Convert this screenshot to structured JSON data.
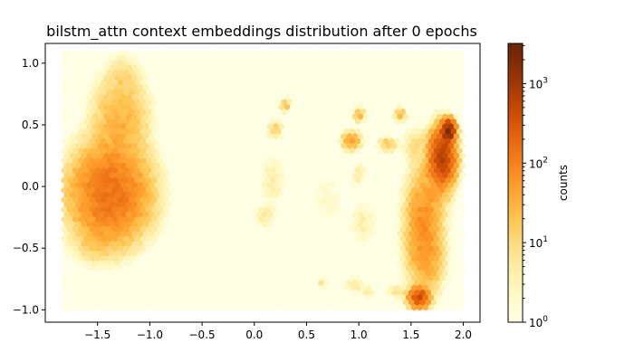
{
  "chart_data": {
    "type": "heatmap",
    "subtype": "hexbin",
    "title": "bilstm_attn context embeddings distribution after 0 epochs",
    "xlabel": "",
    "ylabel": "",
    "xlim": [
      -2.0,
      2.16
    ],
    "ylim": [
      -1.1,
      1.16
    ],
    "x_ticks": [
      -1.5,
      -1.0,
      -0.5,
      0.0,
      0.5,
      1.0,
      1.5,
      2.0
    ],
    "x_tick_labels": [
      "−1.5",
      "−1.0",
      "−0.5",
      "0.0",
      "0.5",
      "1.0",
      "1.5",
      "2.0"
    ],
    "y_ticks": [
      -1.0,
      -0.5,
      0.0,
      0.5,
      1.0
    ],
    "y_tick_labels": [
      "−1.0",
      "−0.5",
      "0.0",
      "0.5",
      "1.0"
    ],
    "hexbin_extent": {
      "x": [
        -1.82,
        2.0
      ],
      "y": [
        -1.0,
        1.08
      ]
    },
    "colormap": "YlOrBr",
    "colorbar": {
      "label": "counts",
      "scale": "log",
      "range": [
        1,
        3200
      ],
      "ticks": [
        1,
        10,
        100,
        1000
      ],
      "tick_labels": [
        "10",
        "10",
        "10",
        "10"
      ],
      "tick_exponents": [
        "0",
        "1",
        "2",
        "3"
      ],
      "colors": [
        "#ffffe5",
        "#fff7bc",
        "#fee391",
        "#fec44f",
        "#fe9929",
        "#ec7014",
        "#cc4c02",
        "#993404",
        "#662506"
      ]
    },
    "clusters": [
      {
        "x": -1.38,
        "y": -0.06,
        "sx": 0.19,
        "sy": 0.2,
        "peak": 150
      },
      {
        "x": -1.28,
        "y": 0.52,
        "sx": 0.14,
        "sy": 0.2,
        "peak": 30
      },
      {
        "x": -1.25,
        "y": 0.88,
        "sx": 0.09,
        "sy": 0.1,
        "peak": 6
      },
      {
        "x": -1.52,
        "y": -0.48,
        "sx": 0.12,
        "sy": 0.08,
        "peak": 8
      },
      {
        "x": 1.62,
        "y": -0.35,
        "sx": 0.09,
        "sy": 0.25,
        "peak": 70
      },
      {
        "x": 1.8,
        "y": 0.24,
        "sx": 0.06,
        "sy": 0.11,
        "peak": 600
      },
      {
        "x": 1.86,
        "y": 0.45,
        "sx": 0.03,
        "sy": 0.04,
        "peak": 1800
      },
      {
        "x": 1.58,
        "y": -0.9,
        "sx": 0.05,
        "sy": 0.04,
        "peak": 350
      },
      {
        "x": 1.75,
        "y": 0.02,
        "sx": 0.08,
        "sy": 0.12,
        "peak": 25
      },
      {
        "x": 1.55,
        "y": 0.33,
        "sx": 0.07,
        "sy": 0.08,
        "peak": 8
      },
      {
        "x": 1.72,
        "y": -0.62,
        "sx": 0.06,
        "sy": 0.1,
        "peak": 15
      },
      {
        "x": 0.93,
        "y": 0.37,
        "sx": 0.05,
        "sy": 0.04,
        "peak": 40
      },
      {
        "x": 1.0,
        "y": 0.58,
        "sx": 0.03,
        "sy": 0.03,
        "peak": 30
      },
      {
        "x": 1.4,
        "y": 0.58,
        "sx": 0.03,
        "sy": 0.03,
        "peak": 25
      },
      {
        "x": 1.28,
        "y": 0.34,
        "sx": 0.05,
        "sy": 0.03,
        "peak": 20
      },
      {
        "x": 0.3,
        "y": 0.66,
        "sx": 0.03,
        "sy": 0.03,
        "peak": 18
      },
      {
        "x": 0.2,
        "y": 0.46,
        "sx": 0.04,
        "sy": 0.04,
        "peak": 12
      },
      {
        "x": 0.18,
        "y": 0.05,
        "sx": 0.08,
        "sy": 0.12,
        "peak": 4
      },
      {
        "x": 0.1,
        "y": -0.25,
        "sx": 0.06,
        "sy": 0.06,
        "peak": 5
      },
      {
        "x": 0.7,
        "y": -0.1,
        "sx": 0.12,
        "sy": 0.15,
        "peak": 2
      },
      {
        "x": 1.05,
        "y": -0.3,
        "sx": 0.08,
        "sy": 0.1,
        "peak": 4
      },
      {
        "x": 0.95,
        "y": -0.8,
        "sx": 0.05,
        "sy": 0.04,
        "peak": 6
      },
      {
        "x": 1.08,
        "y": -0.86,
        "sx": 0.04,
        "sy": 0.03,
        "peak": 5
      },
      {
        "x": 0.65,
        "y": -0.78,
        "sx": 0.03,
        "sy": 0.03,
        "peak": 6
      },
      {
        "x": 1.35,
        "y": -0.85,
        "sx": 0.04,
        "sy": 0.03,
        "peak": 8
      },
      {
        "x": 1.0,
        "y": 0.1,
        "sx": 0.04,
        "sy": 0.06,
        "peak": 5
      }
    ]
  }
}
